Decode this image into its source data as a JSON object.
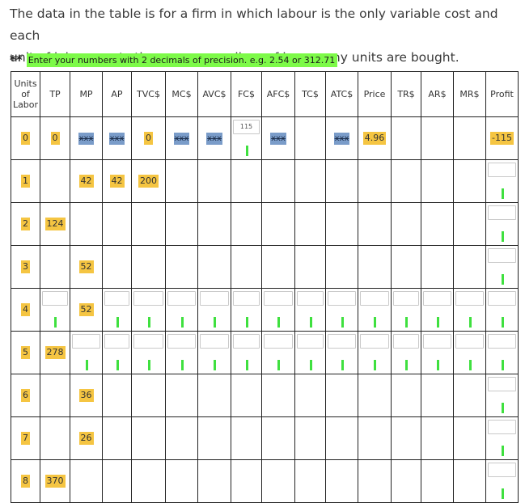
{
  "intro": {
    "line1": "The data in the table is for a firm in which labour is the only variable cost and each",
    "line2": "unit of labour costs the same regardless of how many units are bought."
  },
  "note": {
    "stars": "**",
    "text": "Enter your numbers with 2 decimals of precision.  e.g. 2.54  or 312.71"
  },
  "table": {
    "headers": [
      "Units of Labor",
      "TP",
      "MP",
      "AP",
      "TVC$",
      "MC$",
      "AVC$",
      "FC$",
      "AFC$",
      "TC$",
      "ATC$",
      "Price",
      "TR$",
      "AR$",
      "MR$",
      "Profit"
    ],
    "units": [
      "0",
      "1",
      "2",
      "3",
      "4",
      "5",
      "6",
      "7",
      "8"
    ],
    "tp": [
      "0",
      "",
      "124",
      "",
      "",
      "278",
      "",
      "",
      "370"
    ],
    "mp": [
      "xxx",
      "42",
      "",
      "52",
      "52",
      "",
      "36",
      "26",
      ""
    ],
    "ap": [
      "xxx",
      "42",
      "",
      "",
      "",
      "",
      "",
      "",
      ""
    ],
    "tvc": [
      "0",
      "200",
      "",
      "",
      "",
      "",
      "",
      "",
      ""
    ],
    "mc0": "xxx",
    "avc0": "xxx",
    "fc0": "115",
    "afc0": "xxx",
    "atc0": "xxx",
    "price0": "4.96",
    "profit0": "-115"
  },
  "colors": {
    "highlight_yellow": "#f5c542",
    "highlight_blue": "#7a9cc9",
    "highlight_green": "#7dfa48",
    "caret_green": "#3fe03f"
  }
}
